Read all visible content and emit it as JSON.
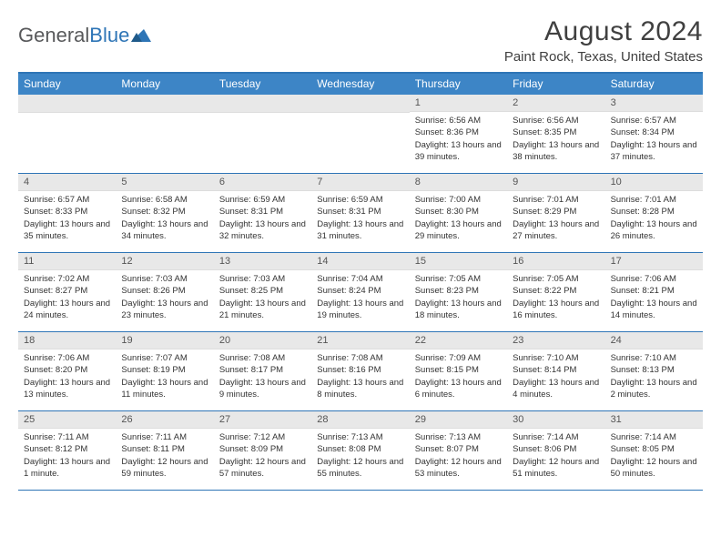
{
  "logo": {
    "part1": "General",
    "part2": "Blue"
  },
  "title": "August 2024",
  "subtitle": "Paint Rock, Texas, United States",
  "colors": {
    "header_bg": "#3d85c6",
    "header_border": "#2e75b6",
    "date_bg": "#e8e8e8",
    "text": "#333333"
  },
  "dayNames": [
    "Sunday",
    "Monday",
    "Tuesday",
    "Wednesday",
    "Thursday",
    "Friday",
    "Saturday"
  ],
  "weeks": [
    [
      null,
      null,
      null,
      null,
      {
        "d": "1",
        "sr": "Sunrise: 6:56 AM",
        "ss": "Sunset: 8:36 PM",
        "dl": "Daylight: 13 hours and 39 minutes."
      },
      {
        "d": "2",
        "sr": "Sunrise: 6:56 AM",
        "ss": "Sunset: 8:35 PM",
        "dl": "Daylight: 13 hours and 38 minutes."
      },
      {
        "d": "3",
        "sr": "Sunrise: 6:57 AM",
        "ss": "Sunset: 8:34 PM",
        "dl": "Daylight: 13 hours and 37 minutes."
      }
    ],
    [
      {
        "d": "4",
        "sr": "Sunrise: 6:57 AM",
        "ss": "Sunset: 8:33 PM",
        "dl": "Daylight: 13 hours and 35 minutes."
      },
      {
        "d": "5",
        "sr": "Sunrise: 6:58 AM",
        "ss": "Sunset: 8:32 PM",
        "dl": "Daylight: 13 hours and 34 minutes."
      },
      {
        "d": "6",
        "sr": "Sunrise: 6:59 AM",
        "ss": "Sunset: 8:31 PM",
        "dl": "Daylight: 13 hours and 32 minutes."
      },
      {
        "d": "7",
        "sr": "Sunrise: 6:59 AM",
        "ss": "Sunset: 8:31 PM",
        "dl": "Daylight: 13 hours and 31 minutes."
      },
      {
        "d": "8",
        "sr": "Sunrise: 7:00 AM",
        "ss": "Sunset: 8:30 PM",
        "dl": "Daylight: 13 hours and 29 minutes."
      },
      {
        "d": "9",
        "sr": "Sunrise: 7:01 AM",
        "ss": "Sunset: 8:29 PM",
        "dl": "Daylight: 13 hours and 27 minutes."
      },
      {
        "d": "10",
        "sr": "Sunrise: 7:01 AM",
        "ss": "Sunset: 8:28 PM",
        "dl": "Daylight: 13 hours and 26 minutes."
      }
    ],
    [
      {
        "d": "11",
        "sr": "Sunrise: 7:02 AM",
        "ss": "Sunset: 8:27 PM",
        "dl": "Daylight: 13 hours and 24 minutes."
      },
      {
        "d": "12",
        "sr": "Sunrise: 7:03 AM",
        "ss": "Sunset: 8:26 PM",
        "dl": "Daylight: 13 hours and 23 minutes."
      },
      {
        "d": "13",
        "sr": "Sunrise: 7:03 AM",
        "ss": "Sunset: 8:25 PM",
        "dl": "Daylight: 13 hours and 21 minutes."
      },
      {
        "d": "14",
        "sr": "Sunrise: 7:04 AM",
        "ss": "Sunset: 8:24 PM",
        "dl": "Daylight: 13 hours and 19 minutes."
      },
      {
        "d": "15",
        "sr": "Sunrise: 7:05 AM",
        "ss": "Sunset: 8:23 PM",
        "dl": "Daylight: 13 hours and 18 minutes."
      },
      {
        "d": "16",
        "sr": "Sunrise: 7:05 AM",
        "ss": "Sunset: 8:22 PM",
        "dl": "Daylight: 13 hours and 16 minutes."
      },
      {
        "d": "17",
        "sr": "Sunrise: 7:06 AM",
        "ss": "Sunset: 8:21 PM",
        "dl": "Daylight: 13 hours and 14 minutes."
      }
    ],
    [
      {
        "d": "18",
        "sr": "Sunrise: 7:06 AM",
        "ss": "Sunset: 8:20 PM",
        "dl": "Daylight: 13 hours and 13 minutes."
      },
      {
        "d": "19",
        "sr": "Sunrise: 7:07 AM",
        "ss": "Sunset: 8:19 PM",
        "dl": "Daylight: 13 hours and 11 minutes."
      },
      {
        "d": "20",
        "sr": "Sunrise: 7:08 AM",
        "ss": "Sunset: 8:17 PM",
        "dl": "Daylight: 13 hours and 9 minutes."
      },
      {
        "d": "21",
        "sr": "Sunrise: 7:08 AM",
        "ss": "Sunset: 8:16 PM",
        "dl": "Daylight: 13 hours and 8 minutes."
      },
      {
        "d": "22",
        "sr": "Sunrise: 7:09 AM",
        "ss": "Sunset: 8:15 PM",
        "dl": "Daylight: 13 hours and 6 minutes."
      },
      {
        "d": "23",
        "sr": "Sunrise: 7:10 AM",
        "ss": "Sunset: 8:14 PM",
        "dl": "Daylight: 13 hours and 4 minutes."
      },
      {
        "d": "24",
        "sr": "Sunrise: 7:10 AM",
        "ss": "Sunset: 8:13 PM",
        "dl": "Daylight: 13 hours and 2 minutes."
      }
    ],
    [
      {
        "d": "25",
        "sr": "Sunrise: 7:11 AM",
        "ss": "Sunset: 8:12 PM",
        "dl": "Daylight: 13 hours and 1 minute."
      },
      {
        "d": "26",
        "sr": "Sunrise: 7:11 AM",
        "ss": "Sunset: 8:11 PM",
        "dl": "Daylight: 12 hours and 59 minutes."
      },
      {
        "d": "27",
        "sr": "Sunrise: 7:12 AM",
        "ss": "Sunset: 8:09 PM",
        "dl": "Daylight: 12 hours and 57 minutes."
      },
      {
        "d": "28",
        "sr": "Sunrise: 7:13 AM",
        "ss": "Sunset: 8:08 PM",
        "dl": "Daylight: 12 hours and 55 minutes."
      },
      {
        "d": "29",
        "sr": "Sunrise: 7:13 AM",
        "ss": "Sunset: 8:07 PM",
        "dl": "Daylight: 12 hours and 53 minutes."
      },
      {
        "d": "30",
        "sr": "Sunrise: 7:14 AM",
        "ss": "Sunset: 8:06 PM",
        "dl": "Daylight: 12 hours and 51 minutes."
      },
      {
        "d": "31",
        "sr": "Sunrise: 7:14 AM",
        "ss": "Sunset: 8:05 PM",
        "dl": "Daylight: 12 hours and 50 minutes."
      }
    ]
  ]
}
